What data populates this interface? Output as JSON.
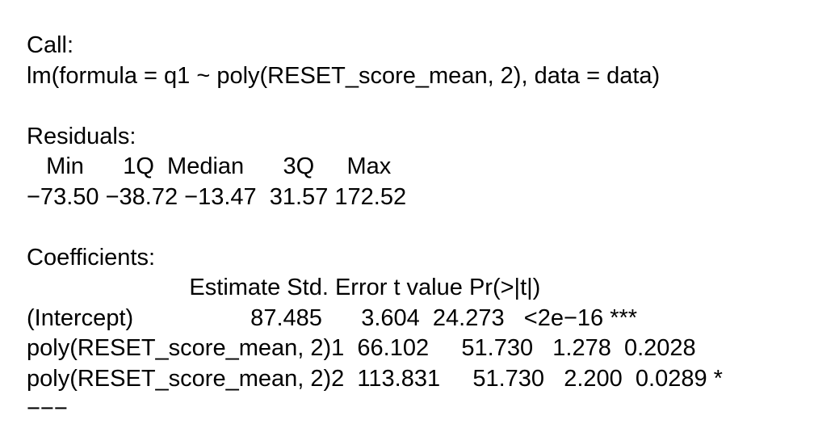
{
  "call": {
    "heading": "Call:",
    "formula": "lm(formula = q1 ~ poly(RESET_score_mean, 2), data = data)"
  },
  "residuals": {
    "heading": "Residuals:",
    "header_line": "   Min      1Q  Median      3Q     Max",
    "values_line": "−73.50 −38.72 −13.47  31.57 172.52"
  },
  "coefficients": {
    "heading": "Coefficients:",
    "header_line": "                         Estimate Std. Error t value Pr(>|t|)",
    "rows": [
      "(Intercept)                  87.485      3.604  24.273   <2e−16 ***",
      "poly(RESET_score_mean, 2)1  66.102     51.730   1.278  0.2028",
      "poly(RESET_score_mean, 2)2  113.831     51.730   2.200  0.0289 *"
    ],
    "separator": "−−−"
  }
}
